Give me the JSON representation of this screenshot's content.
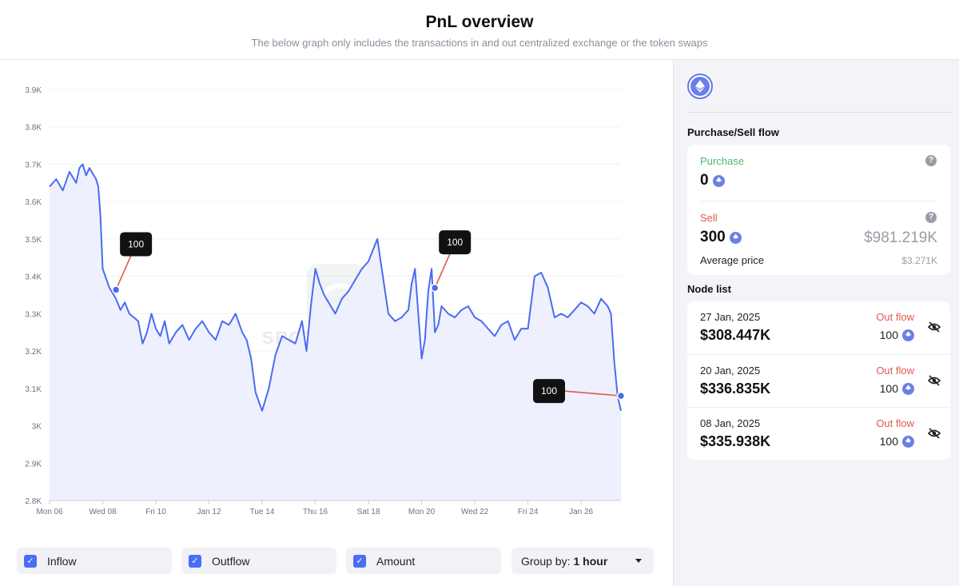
{
  "header": {
    "title": "PnL overview",
    "subtitle": "The below graph only includes the transactions in and out centralized exchange or the token swaps"
  },
  "watermark": "SPOTONCHAIN",
  "chart_data": {
    "type": "area",
    "ylim": [
      2800,
      3900
    ],
    "yticks": [
      2800,
      2900,
      3000,
      3100,
      3200,
      3300,
      3400,
      3500,
      3600,
      3700,
      3800,
      3900
    ],
    "ytick_labels": [
      "2.8K",
      "2.9K",
      "3K",
      "3.1K",
      "3.2K",
      "3.3K",
      "3.4K",
      "3.5K",
      "3.6K",
      "3.7K",
      "3.8K",
      "3.9K"
    ],
    "x_start": "2025-01-06",
    "x_end": "2025-01-27T12:00",
    "xtick_labels": [
      {
        "date": "2025-01-06",
        "label": "Mon 06"
      },
      {
        "date": "2025-01-08",
        "label": "Wed 08"
      },
      {
        "date": "2025-01-10",
        "label": "Fri 10"
      },
      {
        "date": "2025-01-12",
        "label": "Jan 12"
      },
      {
        "date": "2025-01-14",
        "label": "Tue 14"
      },
      {
        "date": "2025-01-16",
        "label": "Thu 16"
      },
      {
        "date": "2025-01-18",
        "label": "Sat 18"
      },
      {
        "date": "2025-01-20",
        "label": "Mon 20"
      },
      {
        "date": "2025-01-22",
        "label": "Wed 22"
      },
      {
        "date": "2025-01-24",
        "label": "Fri 24"
      },
      {
        "date": "2025-01-26",
        "label": "Jan 26"
      }
    ],
    "series": [
      {
        "x": [
          "2025-01-06T00:00",
          "2025-01-06T06:00",
          "2025-01-06T12:00",
          "2025-01-06T18:00",
          "2025-01-07T00:00",
          "2025-01-07T03:00",
          "2025-01-07T06:00",
          "2025-01-07T09:00",
          "2025-01-07T12:00",
          "2025-01-07T18:00",
          "2025-01-07T20:00",
          "2025-01-07T22:00",
          "2025-01-08T00:00",
          "2025-01-08T06:00",
          "2025-01-08T12:00",
          "2025-01-08T16:00",
          "2025-01-08T20:00",
          "2025-01-09T00:00",
          "2025-01-09T04:00",
          "2025-01-09T08:00",
          "2025-01-09T12:00",
          "2025-01-09T16:00",
          "2025-01-09T20:00",
          "2025-01-10T00:00",
          "2025-01-10T04:00",
          "2025-01-10T08:00",
          "2025-01-10T12:00",
          "2025-01-10T18:00",
          "2025-01-11T00:00",
          "2025-01-11T06:00",
          "2025-01-11T12:00",
          "2025-01-11T18:00",
          "2025-01-12T00:00",
          "2025-01-12T06:00",
          "2025-01-12T12:00",
          "2025-01-12T18:00",
          "2025-01-13T00:00",
          "2025-01-13T06:00",
          "2025-01-13T10:00",
          "2025-01-13T14:00",
          "2025-01-13T18:00",
          "2025-01-14T00:00",
          "2025-01-14T06:00",
          "2025-01-14T12:00",
          "2025-01-14T18:00",
          "2025-01-15T00:00",
          "2025-01-15T06:00",
          "2025-01-15T12:00",
          "2025-01-15T16:00",
          "2025-01-15T20:00",
          "2025-01-16T00:00",
          "2025-01-16T04:00",
          "2025-01-16T08:00",
          "2025-01-16T12:00",
          "2025-01-16T18:00",
          "2025-01-17T00:00",
          "2025-01-17T06:00",
          "2025-01-17T12:00",
          "2025-01-17T18:00",
          "2025-01-18T00:00",
          "2025-01-18T04:00",
          "2025-01-18T08:00",
          "2025-01-18T12:00",
          "2025-01-18T18:00",
          "2025-01-19T00:00",
          "2025-01-19T06:00",
          "2025-01-19T12:00",
          "2025-01-19T15:00",
          "2025-01-19T18:00",
          "2025-01-19T21:00",
          "2025-01-20T00:00",
          "2025-01-20T03:00",
          "2025-01-20T06:00",
          "2025-01-20T09:00",
          "2025-01-20T12:00",
          "2025-01-20T15:00",
          "2025-01-20T18:00",
          "2025-01-21T00:00",
          "2025-01-21T06:00",
          "2025-01-21T12:00",
          "2025-01-21T18:00",
          "2025-01-22T00:00",
          "2025-01-22T06:00",
          "2025-01-22T12:00",
          "2025-01-22T18:00",
          "2025-01-23T00:00",
          "2025-01-23T06:00",
          "2025-01-23T12:00",
          "2025-01-23T18:00",
          "2025-01-24T00:00",
          "2025-01-24T06:00",
          "2025-01-24T12:00",
          "2025-01-24T18:00",
          "2025-01-25T00:00",
          "2025-01-25T06:00",
          "2025-01-25T12:00",
          "2025-01-25T18:00",
          "2025-01-26T00:00",
          "2025-01-26T06:00",
          "2025-01-26T12:00",
          "2025-01-26T18:00",
          "2025-01-27T00:00",
          "2025-01-27T03:00",
          "2025-01-27T06:00",
          "2025-01-27T09:00",
          "2025-01-27T12:00"
        ],
        "y": [
          3640,
          3660,
          3630,
          3680,
          3650,
          3690,
          3700,
          3670,
          3690,
          3660,
          3640,
          3560,
          3420,
          3370,
          3340,
          3310,
          3330,
          3300,
          3290,
          3280,
          3220,
          3250,
          3300,
          3260,
          3240,
          3280,
          3220,
          3250,
          3270,
          3230,
          3260,
          3280,
          3250,
          3230,
          3280,
          3270,
          3300,
          3250,
          3230,
          3180,
          3090,
          3040,
          3100,
          3190,
          3240,
          3230,
          3220,
          3280,
          3200,
          3320,
          3420,
          3380,
          3350,
          3330,
          3300,
          3340,
          3360,
          3390,
          3420,
          3440,
          3470,
          3500,
          3420,
          3300,
          3280,
          3290,
          3310,
          3380,
          3420,
          3300,
          3180,
          3230,
          3360,
          3420,
          3250,
          3270,
          3320,
          3300,
          3290,
          3310,
          3320,
          3290,
          3280,
          3260,
          3240,
          3270,
          3280,
          3230,
          3260,
          3260,
          3400,
          3410,
          3370,
          3290,
          3300,
          3290,
          3310,
          3330,
          3320,
          3300,
          3340,
          3320,
          3300,
          3170,
          3080,
          3040
        ]
      }
    ],
    "annotations": [
      {
        "x": "2025-01-08T12:00",
        "y": 3364,
        "label": "100",
        "side": "up"
      },
      {
        "x": "2025-01-20T12:00",
        "y": 3369,
        "label": "100",
        "side": "up"
      },
      {
        "x": "2025-01-27T12:00",
        "y": 3080,
        "label": "100",
        "side": "left"
      }
    ]
  },
  "controls": {
    "inflow": "Inflow",
    "outflow": "Outflow",
    "amount": "Amount",
    "group_by_label": "Group by:",
    "group_by_value": "1 hour"
  },
  "sidebar": {
    "token_icon": "ethereum-icon",
    "flow_title": "Purchase/Sell flow",
    "purchase": {
      "label": "Purchase",
      "amount": "0"
    },
    "sell": {
      "label": "Sell",
      "amount": "300",
      "usd": "$981.219K",
      "avg_label": "Average price",
      "avg_value": "$3.271K"
    },
    "node_title": "Node list",
    "nodes": [
      {
        "date": "27 Jan, 2025",
        "amount": "$308.447K",
        "flow": "Out flow",
        "qty": "100"
      },
      {
        "date": "20 Jan, 2025",
        "amount": "$336.835K",
        "flow": "Out flow",
        "qty": "100"
      },
      {
        "date": "08 Jan, 2025",
        "amount": "$335.938K",
        "flow": "Out flow",
        "qty": "100"
      }
    ]
  },
  "colors": {
    "line": "#4a6cf0",
    "fill": "#eef1fd",
    "marker_line": "#e2584b",
    "out_flow": "#e2584b",
    "purchase": "#4cba6a",
    "eth": "#6b7fe8"
  }
}
